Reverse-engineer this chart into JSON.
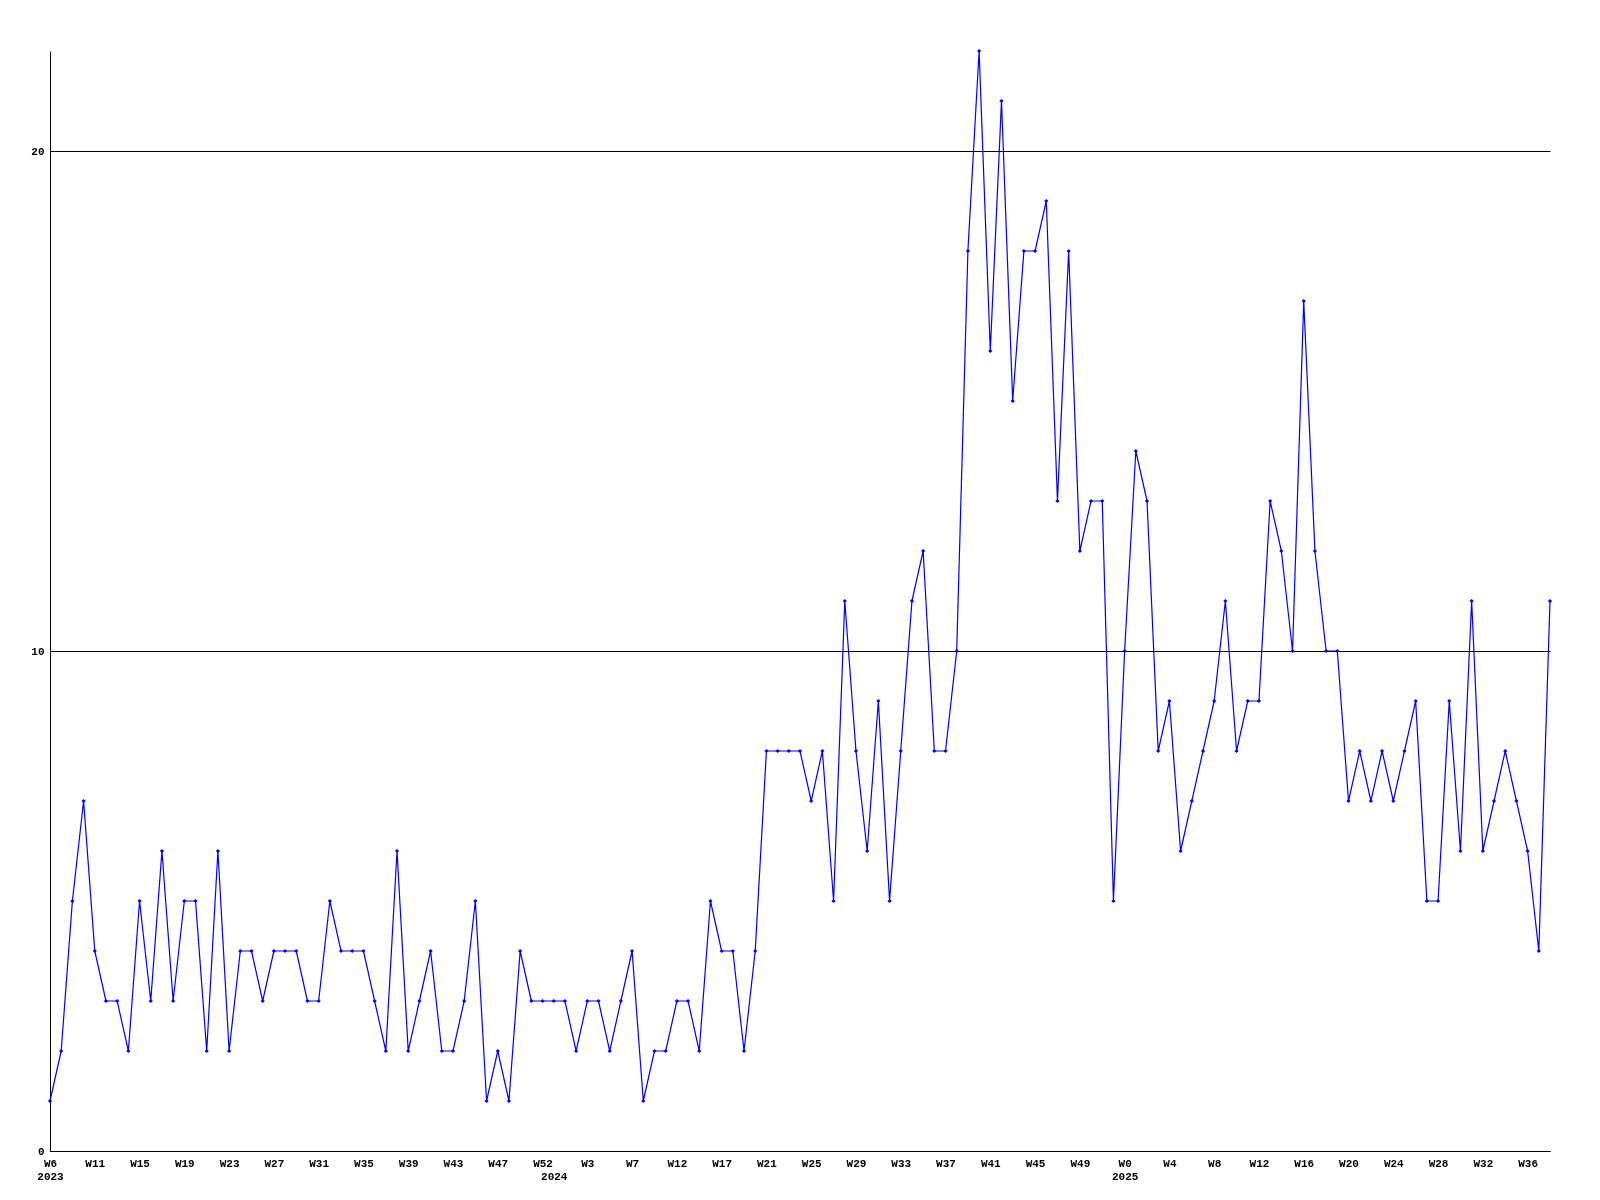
{
  "chart_data": {
    "type": "line",
    "categories": [
      "W6\n2023",
      null,
      null,
      null,
      "W11",
      null,
      null,
      null,
      "W15",
      null,
      null,
      null,
      "W19",
      null,
      null,
      null,
      "W23",
      null,
      null,
      null,
      "W27",
      null,
      null,
      null,
      "W31",
      null,
      null,
      null,
      "W35",
      null,
      null,
      null,
      "W39",
      null,
      null,
      null,
      "W43",
      null,
      null,
      null,
      "W47",
      null,
      null,
      null,
      "W52",
      "\n2024",
      null,
      null,
      "W3",
      null,
      null,
      null,
      "W7",
      null,
      null,
      null,
      "W12",
      null,
      null,
      null,
      "W17",
      null,
      null,
      null,
      "W21",
      null,
      null,
      null,
      "W25",
      null,
      null,
      null,
      "W29",
      null,
      null,
      null,
      "W33",
      null,
      null,
      null,
      "W37",
      null,
      null,
      null,
      "W41",
      null,
      null,
      null,
      "W45",
      null,
      null,
      null,
      "W49",
      null,
      null,
      null,
      "W0\n2025",
      null,
      null,
      null,
      "W4",
      null,
      null,
      null,
      "W8",
      null,
      null,
      null,
      "W12",
      null,
      null,
      null,
      "W16",
      null,
      null,
      null,
      "W20",
      null,
      null,
      null,
      "W24",
      null,
      null,
      null,
      "W28",
      null,
      null,
      null,
      "W32",
      null,
      null,
      null,
      "W36",
      null,
      null
    ],
    "series": [
      {
        "color": "#0000ff",
        "values": [
          1,
          2,
          5,
          7,
          4,
          3,
          3,
          2,
          5,
          3,
          6,
          3,
          5,
          5,
          2,
          6,
          2,
          4,
          4,
          3,
          4,
          4,
          4,
          3,
          3,
          5,
          4,
          4,
          4,
          3,
          2,
          6,
          2,
          3,
          4,
          2,
          2,
          3,
          5,
          1,
          2,
          1,
          4,
          3,
          3,
          3,
          3,
          2,
          3,
          3,
          2,
          3,
          4,
          1,
          2,
          2,
          3,
          3,
          2,
          5,
          4,
          4,
          2,
          4,
          8,
          8,
          8,
          8,
          7,
          8,
          5,
          11,
          8,
          6,
          9,
          5,
          8,
          11,
          12,
          8,
          8,
          10,
          18,
          22,
          16,
          21,
          15,
          18,
          18,
          19,
          13,
          18,
          12,
          13,
          13,
          5,
          10,
          14,
          13,
          8,
          9,
          6,
          7,
          8,
          9,
          11,
          8,
          9,
          9,
          13,
          12,
          10,
          17,
          12,
          10,
          10,
          7,
          8,
          7,
          8,
          7,
          8,
          9,
          5,
          5,
          9,
          6,
          11,
          6,
          7,
          8,
          7,
          6,
          4,
          11
        ]
      }
    ],
    "ylim": [
      0,
      22
    ],
    "yticks": [
      0,
      10,
      20
    ],
    "grid": "y",
    "marker": "diamond",
    "line_style": "solid"
  }
}
